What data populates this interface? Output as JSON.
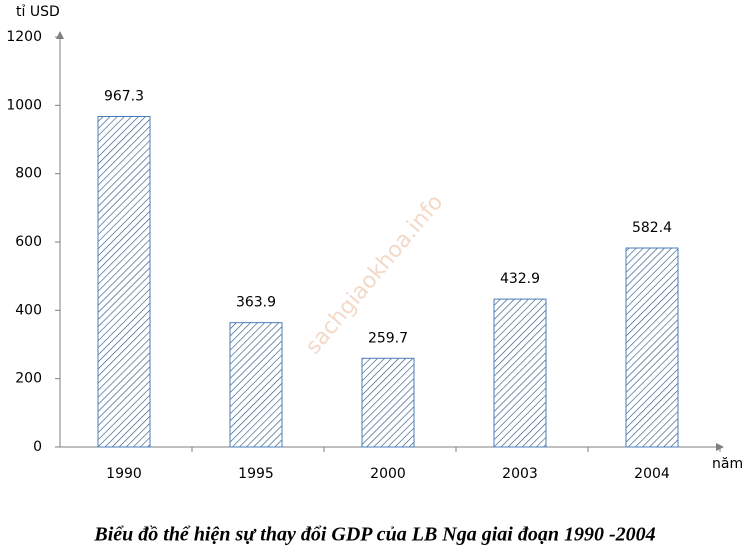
{
  "chart_data": {
    "type": "bar",
    "title": "Biểu đồ thể hiện sự thay đổi GDP của LB Nga giai đoạn 1990 -2004",
    "y_label": "tỉ USD",
    "x_label": "năm",
    "watermark": "sachgiaokhoa.info",
    "categories": [
      "1990",
      "1995",
      "2000",
      "2003",
      "2004"
    ],
    "values": [
      967.3,
      363.9,
      259.7,
      432.9,
      582.4
    ],
    "value_labels": [
      "967.3",
      "363.9",
      "259.7",
      "432.9",
      "582.4"
    ],
    "color": "#1f4e79",
    "ylim": [
      0,
      1200
    ],
    "yticks": [
      0,
      200,
      400,
      600,
      800,
      1000,
      1200
    ],
    "grid": false
  }
}
